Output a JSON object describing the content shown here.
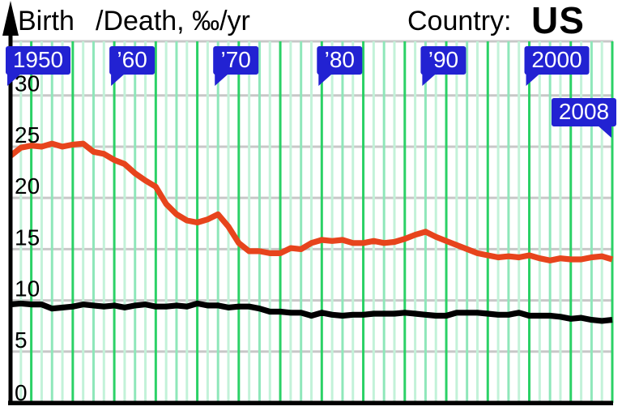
{
  "header": {
    "birth_label": "Birth",
    "death_units_label": "/Death, ‰/yr",
    "country_label": "Country:",
    "country_value": "US"
  },
  "colors": {
    "birth_line": "#e7441c",
    "death_line": "#000000",
    "callout_bg": "#2222d2",
    "callout_text": "#ffffff",
    "grid_gray": "#c8c8c8",
    "grid_green_bright": "#2bd166",
    "grid_green_medium": "#8fe7ba",
    "grid_green_light": "#c3f2d9",
    "axis": "#000000",
    "tick_text": "#000000"
  },
  "y_axis": {
    "ticks": [
      0,
      5,
      10,
      15,
      20,
      25,
      30
    ]
  },
  "year_callouts": [
    {
      "label": "1950",
      "year": 1950,
      "tail": "left"
    },
    {
      "label": "’60",
      "year": 1960,
      "tail": "left"
    },
    {
      "label": "’70",
      "year": 1970,
      "tail": "left"
    },
    {
      "label": "’80",
      "year": 1980,
      "tail": "left"
    },
    {
      "label": "’90",
      "year": 1990,
      "tail": "left"
    },
    {
      "label": "2000",
      "year": 2000,
      "tail": "left"
    },
    {
      "label": "2008",
      "year": 2008,
      "tail": "right"
    }
  ],
  "chart_data": {
    "type": "line",
    "title": "Birth /Death, ‰/yr — Country: US",
    "xlabel": "year",
    "ylabel": "‰/yr",
    "xlim": [
      1950,
      2008
    ],
    "ylim": [
      0,
      35.3
    ],
    "y_ticks": [
      0,
      5,
      10,
      15,
      20,
      25,
      30
    ],
    "grid": "vertical green line every year, emphasized every 4th year; horizontal gray line every 5 ‰",
    "legend_position": "none",
    "x": [
      1950,
      1951,
      1952,
      1953,
      1954,
      1955,
      1956,
      1957,
      1958,
      1959,
      1960,
      1961,
      1962,
      1963,
      1964,
      1965,
      1966,
      1967,
      1968,
      1969,
      1970,
      1971,
      1972,
      1973,
      1974,
      1975,
      1976,
      1977,
      1978,
      1979,
      1980,
      1981,
      1982,
      1983,
      1984,
      1985,
      1986,
      1987,
      1988,
      1989,
      1990,
      1991,
      1992,
      1993,
      1994,
      1995,
      1996,
      1997,
      1998,
      1999,
      2000,
      2001,
      2002,
      2003,
      2004,
      2005,
      2006,
      2007,
      2008
    ],
    "series": [
      {
        "name": "Birth",
        "color": "#e7441c",
        "values": [
          24.1,
          24.9,
          25.1,
          25.0,
          25.3,
          25.0,
          25.2,
          25.3,
          24.5,
          24.3,
          23.7,
          23.3,
          22.4,
          21.7,
          21.1,
          19.4,
          18.4,
          17.8,
          17.6,
          17.9,
          18.4,
          17.2,
          15.6,
          14.8,
          14.8,
          14.6,
          14.6,
          15.1,
          15.0,
          15.6,
          15.9,
          15.8,
          15.9,
          15.6,
          15.6,
          15.8,
          15.6,
          15.7,
          16.0,
          16.4,
          16.7,
          16.2,
          15.8,
          15.4,
          15.0,
          14.6,
          14.4,
          14.2,
          14.3,
          14.2,
          14.4,
          14.1,
          13.9,
          14.1,
          14.0,
          14.0,
          14.2,
          14.3,
          14.0
        ]
      },
      {
        "name": "Death",
        "color": "#000000",
        "values": [
          9.6,
          9.7,
          9.6,
          9.6,
          9.2,
          9.3,
          9.4,
          9.6,
          9.5,
          9.4,
          9.5,
          9.3,
          9.5,
          9.6,
          9.4,
          9.4,
          9.5,
          9.4,
          9.7,
          9.5,
          9.5,
          9.3,
          9.4,
          9.4,
          9.2,
          8.9,
          8.9,
          8.8,
          8.8,
          8.5,
          8.8,
          8.6,
          8.5,
          8.6,
          8.6,
          8.7,
          8.7,
          8.7,
          8.8,
          8.7,
          8.6,
          8.5,
          8.5,
          8.8,
          8.8,
          8.8,
          8.7,
          8.6,
          8.6,
          8.8,
          8.5,
          8.5,
          8.5,
          8.4,
          8.2,
          8.3,
          8.1,
          8.0,
          8.1
        ]
      }
    ]
  }
}
